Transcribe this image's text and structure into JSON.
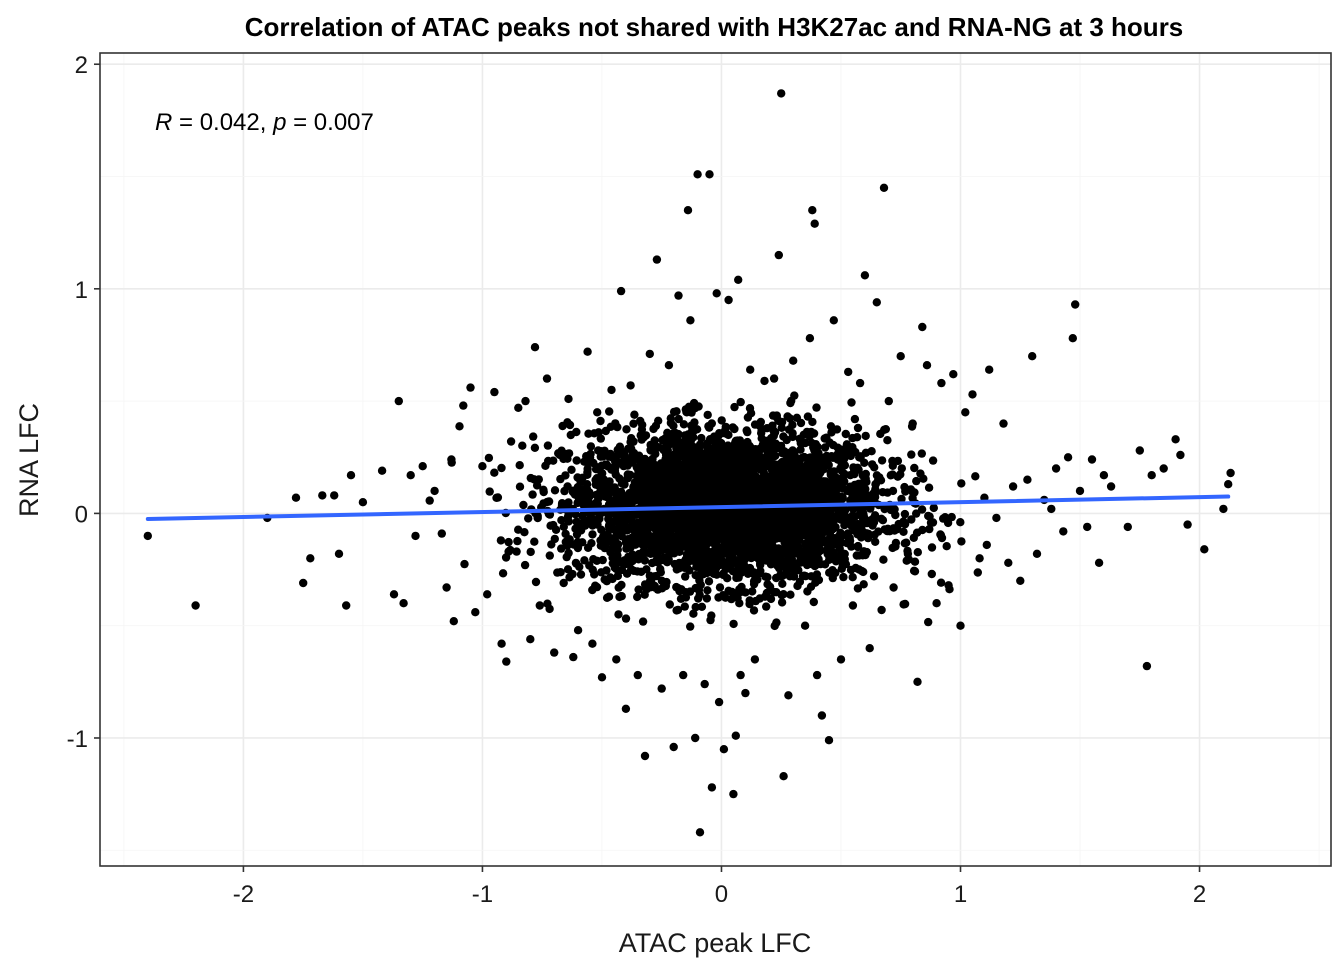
{
  "chart_data": {
    "type": "scatter",
    "title": "Correlation of ATAC peaks not shared with H3K27ac and RNA-NG  at 3 hours",
    "xlabel": "ATAC peak LFC",
    "ylabel": "RNA LFC",
    "xlim": [
      -2.6,
      2.55
    ],
    "ylim": [
      -1.57,
      2.05
    ],
    "x_ticks": [
      -2,
      -1,
      0,
      1,
      2
    ],
    "y_ticks": [
      -1,
      0,
      1,
      2
    ],
    "x_tick_labels": [
      "-2",
      "-1",
      "0",
      "1",
      "2"
    ],
    "y_tick_labels": [
      "-1",
      "0",
      "1",
      "2"
    ],
    "grid": true,
    "point_color": "#000000",
    "trend_color": "#3366FF",
    "annotation": {
      "r_symbol": "R",
      "r_text": " = 0.042, ",
      "p_symbol": "p",
      "p_text": " = 0.007"
    },
    "trend_line": {
      "x": [
        -2.4,
        2.12
      ],
      "y": [
        -0.025,
        0.075
      ]
    },
    "points": [
      [
        -2.4,
        -0.1
      ],
      [
        -2.2,
        -0.41
      ],
      [
        -1.9,
        -0.02
      ],
      [
        -1.78,
        0.07
      ],
      [
        -1.75,
        -0.31
      ],
      [
        -1.72,
        -0.2
      ],
      [
        -1.67,
        0.08
      ],
      [
        -1.62,
        0.08
      ],
      [
        -1.6,
        -0.18
      ],
      [
        -1.57,
        -0.41
      ],
      [
        -1.55,
        0.17
      ],
      [
        -1.5,
        0.05
      ],
      [
        -1.42,
        0.19
      ],
      [
        -1.37,
        -0.36
      ],
      [
        -1.35,
        0.5
      ],
      [
        -1.33,
        -0.4
      ],
      [
        -1.3,
        0.17
      ],
      [
        -1.28,
        -0.1
      ],
      [
        -1.25,
        0.21
      ],
      [
        -1.2,
        0.1
      ],
      [
        -1.17,
        -0.09
      ],
      [
        -1.15,
        -0.33
      ],
      [
        -1.13,
        0.24
      ],
      [
        -1.12,
        -0.48
      ],
      [
        -1.08,
        0.48
      ],
      [
        -1.05,
        0.56
      ],
      [
        -1.03,
        -0.44
      ],
      [
        -1.0,
        0.21
      ],
      [
        -0.98,
        -0.36
      ],
      [
        -0.95,
        0.54
      ],
      [
        -0.92,
        -0.58
      ],
      [
        -0.9,
        -0.66
      ],
      [
        -0.88,
        0.32
      ],
      [
        -0.85,
        0.47
      ],
      [
        -0.82,
        0.5
      ],
      [
        -0.8,
        -0.56
      ],
      [
        -0.78,
        0.74
      ],
      [
        -0.76,
        -0.41
      ],
      [
        -0.73,
        0.6
      ],
      [
        -0.7,
        -0.62
      ],
      [
        -0.66,
        -0.31
      ],
      [
        -0.64,
        0.51
      ],
      [
        -0.62,
        -0.64
      ],
      [
        -0.6,
        -0.52
      ],
      [
        -0.56,
        0.72
      ],
      [
        -0.54,
        -0.58
      ],
      [
        -0.52,
        0.45
      ],
      [
        -0.5,
        -0.73
      ],
      [
        -0.46,
        0.55
      ],
      [
        -0.44,
        -0.65
      ],
      [
        -0.42,
        0.99
      ],
      [
        -0.4,
        -0.87
      ],
      [
        -0.38,
        0.57
      ],
      [
        -0.35,
        -0.72
      ],
      [
        -0.32,
        -1.08
      ],
      [
        -0.3,
        0.71
      ],
      [
        -0.27,
        1.13
      ],
      [
        -0.25,
        -0.78
      ],
      [
        -0.22,
        0.66
      ],
      [
        -0.2,
        -1.04
      ],
      [
        -0.18,
        0.97
      ],
      [
        -0.16,
        -0.72
      ],
      [
        -0.14,
        1.35
      ],
      [
        -0.13,
        0.86
      ],
      [
        -0.11,
        -1.0
      ],
      [
        -0.1,
        1.51
      ],
      [
        -0.09,
        -1.42
      ],
      [
        -0.07,
        -0.76
      ],
      [
        -0.05,
        1.51
      ],
      [
        -0.04,
        -1.22
      ],
      [
        -0.02,
        0.98
      ],
      [
        -0.01,
        -0.84
      ],
      [
        0.01,
        -1.05
      ],
      [
        0.03,
        0.95
      ],
      [
        0.05,
        -1.25
      ],
      [
        0.06,
        -0.99
      ],
      [
        0.07,
        1.04
      ],
      [
        0.08,
        -0.72
      ],
      [
        0.1,
        -0.8
      ],
      [
        0.12,
        0.64
      ],
      [
        0.14,
        -0.65
      ],
      [
        0.18,
        0.59
      ],
      [
        0.22,
        0.6
      ],
      [
        0.24,
        1.15
      ],
      [
        0.25,
        1.87
      ],
      [
        0.26,
        -1.17
      ],
      [
        0.28,
        -0.81
      ],
      [
        0.3,
        0.68
      ],
      [
        0.35,
        -0.5
      ],
      [
        0.37,
        0.78
      ],
      [
        0.38,
        1.35
      ],
      [
        0.39,
        1.29
      ],
      [
        0.4,
        -0.72
      ],
      [
        0.42,
        -0.9
      ],
      [
        0.45,
        -1.01
      ],
      [
        0.47,
        0.86
      ],
      [
        0.5,
        -0.65
      ],
      [
        0.53,
        0.63
      ],
      [
        0.55,
        -0.41
      ],
      [
        0.58,
        0.58
      ],
      [
        0.6,
        1.06
      ],
      [
        0.62,
        -0.6
      ],
      [
        0.65,
        0.94
      ],
      [
        0.67,
        -0.43
      ],
      [
        0.68,
        1.45
      ],
      [
        0.7,
        0.5
      ],
      [
        0.72,
        -0.33
      ],
      [
        0.75,
        0.7
      ],
      [
        0.78,
        -0.18
      ],
      [
        0.8,
        0.4
      ],
      [
        0.82,
        -0.75
      ],
      [
        0.84,
        0.83
      ],
      [
        0.86,
        0.66
      ],
      [
        0.88,
        -0.27
      ],
      [
        0.9,
        -0.4
      ],
      [
        0.92,
        0.58
      ],
      [
        0.95,
        -0.32
      ],
      [
        0.97,
        0.62
      ],
      [
        1.0,
        -0.5
      ],
      [
        1.02,
        0.45
      ],
      [
        1.05,
        0.53
      ],
      [
        1.08,
        -0.2
      ],
      [
        1.1,
        0.07
      ],
      [
        1.12,
        0.64
      ],
      [
        1.15,
        -0.02
      ],
      [
        1.18,
        0.4
      ],
      [
        1.2,
        -0.22
      ],
      [
        1.22,
        0.12
      ],
      [
        1.25,
        -0.3
      ],
      [
        1.28,
        0.15
      ],
      [
        1.3,
        0.7
      ],
      [
        1.32,
        -0.18
      ],
      [
        1.35,
        0.06
      ],
      [
        1.38,
        0.02
      ],
      [
        1.4,
        0.2
      ],
      [
        1.43,
        -0.08
      ],
      [
        1.45,
        0.25
      ],
      [
        1.47,
        0.78
      ],
      [
        1.48,
        0.93
      ],
      [
        1.5,
        0.1
      ],
      [
        1.53,
        -0.06
      ],
      [
        1.55,
        0.24
      ],
      [
        1.58,
        -0.22
      ],
      [
        1.6,
        0.17
      ],
      [
        1.63,
        0.12
      ],
      [
        1.7,
        -0.06
      ],
      [
        1.75,
        0.28
      ],
      [
        1.78,
        -0.68
      ],
      [
        1.8,
        0.17
      ],
      [
        1.85,
        0.2
      ],
      [
        1.9,
        0.33
      ],
      [
        1.92,
        0.26
      ],
      [
        1.95,
        -0.05
      ],
      [
        2.02,
        -0.16
      ],
      [
        2.1,
        0.02
      ],
      [
        2.12,
        0.13
      ],
      [
        2.13,
        0.18
      ]
    ],
    "dense_cloud": {
      "count": 3800,
      "x_center": 0.02,
      "x_sd": 0.33,
      "y_center": 0.03,
      "y_sd": 0.17
    }
  }
}
